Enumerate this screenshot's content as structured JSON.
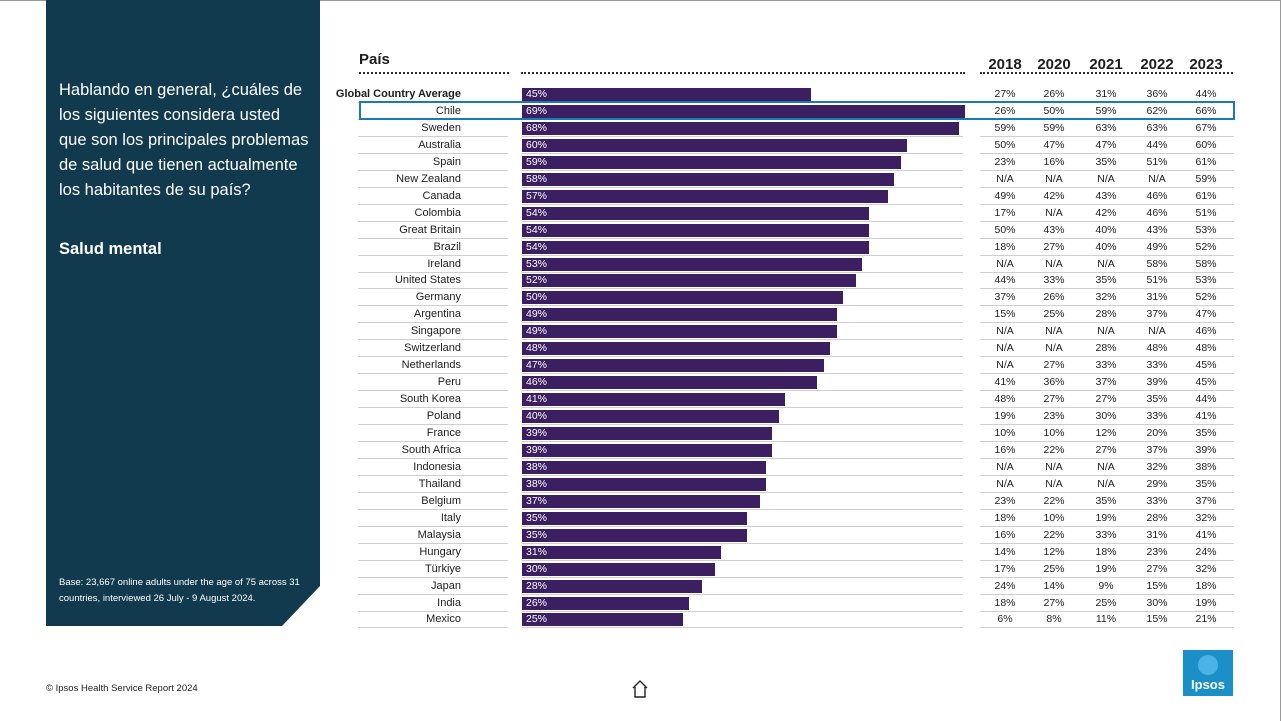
{
  "panel": {
    "question": "Hablando en general, ¿cuáles de los siguientes considera usted que son los principales problemas de salud que tienen actualmente los habitantes de su país?",
    "topic": "Salud mental",
    "base": "Base: 23,667 online adults under the age of 75 across 31 countries, interviewed 26 July - 9 August 2024."
  },
  "footer": {
    "copyright": "© Ipsos Health Service Report 2024"
  },
  "logo": {
    "text": "Ipsos"
  },
  "colors": {
    "panel": "#123a4e",
    "bar": "#3b1f61",
    "highlight": "#1a7ab3",
    "logo": "#1b8fc7"
  },
  "highlighted_row": "Chile",
  "chart_data": {
    "type": "bar",
    "orientation": "horizontal",
    "category_header": "País",
    "year_headers": [
      "2018",
      "2020",
      "2021",
      "2022",
      "2023"
    ],
    "categories": [
      "Global Country Average",
      "Chile",
      "Sweden",
      "Australia",
      "Spain",
      "New Zealand",
      "Canada",
      "Colombia",
      "Great Britain",
      "Brazil",
      "Ireland",
      "United States",
      "Germany",
      "Argentina",
      "Singapore",
      "Switzerland",
      "Netherlands",
      "Peru",
      "South Korea",
      "Poland",
      "France",
      "South Africa",
      "Indonesia",
      "Thailand",
      "Belgium",
      "Italy",
      "Malaysia",
      "Hungary",
      "Türkiye",
      "Japan",
      "India",
      "Mexico"
    ],
    "values": [
      45,
      69,
      68,
      60,
      59,
      58,
      57,
      54,
      54,
      54,
      53,
      52,
      50,
      49,
      49,
      48,
      47,
      46,
      41,
      40,
      39,
      39,
      38,
      38,
      37,
      35,
      35,
      31,
      30,
      28,
      26,
      25
    ],
    "value_labels": [
      "45%",
      "69%",
      "68%",
      "60%",
      "59%",
      "58%",
      "57%",
      "54%",
      "54%",
      "54%",
      "53%",
      "52%",
      "50%",
      "49%",
      "49%",
      "48%",
      "47%",
      "46%",
      "41%",
      "40%",
      "39%",
      "39%",
      "38%",
      "38%",
      "37%",
      "35%",
      "35%",
      "31%",
      "30%",
      "28%",
      "26%",
      "25%"
    ],
    "xlim": [
      0,
      100
    ],
    "history": [
      [
        "27%",
        "26%",
        "31%",
        "36%",
        "44%"
      ],
      [
        "26%",
        "50%",
        "59%",
        "62%",
        "66%"
      ],
      [
        "59%",
        "59%",
        "63%",
        "63%",
        "67%"
      ],
      [
        "50%",
        "47%",
        "47%",
        "44%",
        "60%"
      ],
      [
        "23%",
        "16%",
        "35%",
        "51%",
        "61%"
      ],
      [
        "N/A",
        "N/A",
        "N/A",
        "N/A",
        "59%"
      ],
      [
        "49%",
        "42%",
        "43%",
        "46%",
        "61%"
      ],
      [
        "17%",
        "N/A",
        "42%",
        "46%",
        "51%"
      ],
      [
        "50%",
        "43%",
        "40%",
        "43%",
        "53%"
      ],
      [
        "18%",
        "27%",
        "40%",
        "49%",
        "52%"
      ],
      [
        "N/A",
        "N/A",
        "N/A",
        "58%",
        "58%"
      ],
      [
        "44%",
        "33%",
        "35%",
        "51%",
        "53%"
      ],
      [
        "37%",
        "26%",
        "32%",
        "31%",
        "52%"
      ],
      [
        "15%",
        "25%",
        "28%",
        "37%",
        "47%"
      ],
      [
        "N/A",
        "N/A",
        "N/A",
        "N/A",
        "46%"
      ],
      [
        "N/A",
        "N/A",
        "28%",
        "48%",
        "48%"
      ],
      [
        "N/A",
        "27%",
        "33%",
        "33%",
        "45%"
      ],
      [
        "41%",
        "36%",
        "37%",
        "39%",
        "45%"
      ],
      [
        "48%",
        "27%",
        "27%",
        "35%",
        "44%"
      ],
      [
        "19%",
        "23%",
        "30%",
        "33%",
        "41%"
      ],
      [
        "10%",
        "10%",
        "12%",
        "20%",
        "35%"
      ],
      [
        "16%",
        "22%",
        "27%",
        "37%",
        "39%"
      ],
      [
        "N/A",
        "N/A",
        "N/A",
        "32%",
        "38%"
      ],
      [
        "N/A",
        "N/A",
        "N/A",
        "29%",
        "35%"
      ],
      [
        "23%",
        "22%",
        "35%",
        "33%",
        "37%"
      ],
      [
        "18%",
        "10%",
        "19%",
        "28%",
        "32%"
      ],
      [
        "16%",
        "22%",
        "33%",
        "31%",
        "41%"
      ],
      [
        "14%",
        "12%",
        "18%",
        "23%",
        "24%"
      ],
      [
        "17%",
        "25%",
        "19%",
        "27%",
        "32%"
      ],
      [
        "24%",
        "14%",
        "9%",
        "15%",
        "18%"
      ],
      [
        "18%",
        "27%",
        "25%",
        "30%",
        "19%"
      ],
      [
        "6%",
        "8%",
        "11%",
        "15%",
        "21%"
      ]
    ]
  }
}
